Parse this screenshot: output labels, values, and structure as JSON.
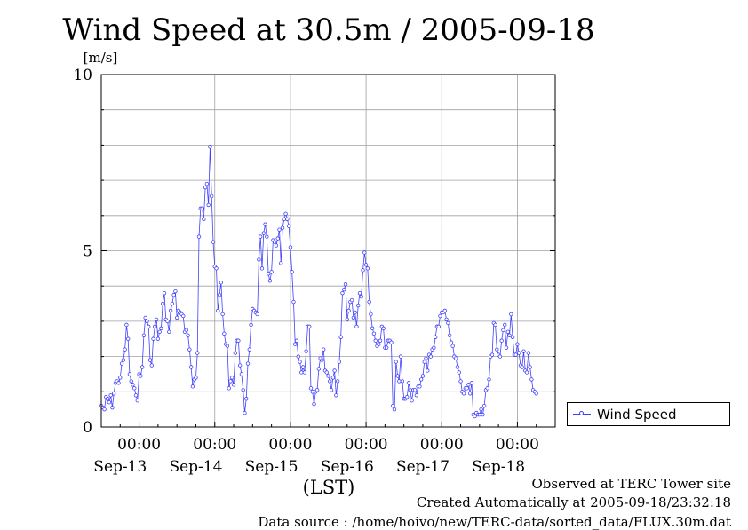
{
  "title": "Wind Speed at 30.5m / 2005-09-18",
  "footer": {
    "line1": "Observed at TERC Tower site",
    "line2": "Created Automatically at 2005-09-18/23:32:18",
    "line3": "Data source : /home/hoivo/new/TERC-data/sorted_data/FLUX.30m.dat"
  },
  "colors": {
    "series": "#4040ff",
    "grid": "#a0a0a0",
    "axis": "#000000"
  },
  "chart_data": {
    "type": "line",
    "title": "Wind Speed at 30.5m / 2005-09-18",
    "ylabel": "[m/s]",
    "xlabel": "(LST)",
    "ylim": [
      0,
      10
    ],
    "xlim": [
      0,
      144
    ],
    "x_unit": "hours from 2005-09-12 12:00 LST",
    "yticks": [
      0,
      5,
      10
    ],
    "ygrid": [
      0,
      1,
      2,
      3,
      4,
      5,
      6,
      7,
      8,
      9,
      10
    ],
    "xticks": [
      {
        "x": 12,
        "time": "00:00",
        "date": "Sep-13"
      },
      {
        "x": 36,
        "time": "00:00",
        "date": "Sep-14"
      },
      {
        "x": 60,
        "time": "00:00",
        "date": "Sep-15"
      },
      {
        "x": 84,
        "time": "00:00",
        "date": "Sep-16"
      },
      {
        "x": 108,
        "time": "00:00",
        "date": "Sep-17"
      },
      {
        "x": 132,
        "time": "00:00",
        "date": "Sep-18"
      }
    ],
    "grid": true,
    "legend_position": "right",
    "series": [
      {
        "name": "Wind Speed",
        "x_step_hours": 0.5,
        "values": [
          0.6,
          0.55,
          0.5,
          0.85,
          0.8,
          0.7,
          0.9,
          0.55,
          0.95,
          1.25,
          1.3,
          1.25,
          1.4,
          1.8,
          1.9,
          2.2,
          2.9,
          2.5,
          1.5,
          1.3,
          1.2,
          1.1,
          0.9,
          0.75,
          1.5,
          1.45,
          1.7,
          2.6,
          3.1,
          3.0,
          2.85,
          1.9,
          1.75,
          2.5,
          2.85,
          3.05,
          2.5,
          2.7,
          2.8,
          3.5,
          3.8,
          3.05,
          3.0,
          2.7,
          3.3,
          3.5,
          3.75,
          3.85,
          3.1,
          3.3,
          3.25,
          3.2,
          3.15,
          2.7,
          2.75,
          2.6,
          2.2,
          1.7,
          1.15,
          1.35,
          1.4,
          2.1,
          5.4,
          6.2,
          6.2,
          5.9,
          6.8,
          6.9,
          6.3,
          7.95,
          6.55,
          5.25,
          4.55,
          4.5,
          3.3,
          3.75,
          4.1,
          3.2,
          2.65,
          2.35,
          2.3,
          1.1,
          1.3,
          1.4,
          1.2,
          2.1,
          2.45,
          2.45,
          1.75,
          1.5,
          1.05,
          0.4,
          0.8,
          1.8,
          2.2,
          2.9,
          3.35,
          3.3,
          3.25,
          3.2,
          4.75,
          5.4,
          4.5,
          5.5,
          5.75,
          5.4,
          4.35,
          4.15,
          4.4,
          5.3,
          5.25,
          5.15,
          5.35,
          5.6,
          4.65,
          5.65,
          5.9,
          6.05,
          5.9,
          5.7,
          5.1,
          4.4,
          3.55,
          2.35,
          2.45,
          2.0,
          1.85,
          1.55,
          1.7,
          1.55,
          2.15,
          2.85,
          2.85,
          1.1,
          1.0,
          0.65,
          1.0,
          1.05,
          1.65,
          1.95,
          1.9,
          2.2,
          1.6,
          1.55,
          1.45,
          1.3,
          1.05,
          1.4,
          1.6,
          0.9,
          1.3,
          1.85,
          2.55,
          3.8,
          3.9,
          4.05,
          3.05,
          3.3,
          3.55,
          3.6,
          3.1,
          3.25,
          2.85,
          3.45,
          3.8,
          3.7,
          4.45,
          4.95,
          4.6,
          4.5,
          3.55,
          3.2,
          2.8,
          2.65,
          2.45,
          2.3,
          2.35,
          2.45,
          2.85,
          2.8,
          2.25,
          2.25,
          2.45,
          2.45,
          2.4,
          0.6,
          0.5,
          1.85,
          1.45,
          1.3,
          2.0,
          1.3,
          0.8,
          0.8,
          0.85,
          1.25,
          1.05,
          0.75,
          1.05,
          1.05,
          0.9,
          1.15,
          1.15,
          1.35,
          1.45,
          1.85,
          1.95,
          1.6,
          2.05,
          2.0,
          2.2,
          2.25,
          2.55,
          2.85,
          2.85,
          3.15,
          3.25,
          3.25,
          3.3,
          3.05,
          2.95,
          2.6,
          2.4,
          2.3,
          2.0,
          1.95,
          1.7,
          1.55,
          1.3,
          1.0,
          0.95,
          1.1,
          1.1,
          1.2,
          0.95,
          1.25,
          0.35,
          0.3,
          0.4,
          0.35,
          0.35,
          0.5,
          0.35,
          0.6,
          1.05,
          1.1,
          1.35,
          2.0,
          2.05,
          2.95,
          2.9,
          2.2,
          2.05,
          2.0,
          2.45,
          2.75,
          2.9,
          2.25,
          2.7,
          2.6,
          3.2,
          2.55,
          2.05,
          2.05,
          2.35,
          2.1,
          1.75,
          1.7,
          2.15,
          1.6,
          1.55,
          2.1,
          1.7,
          1.35,
          1.05,
          1.0,
          0.95
        ]
      }
    ]
  },
  "legend": {
    "label": "Wind Speed"
  }
}
